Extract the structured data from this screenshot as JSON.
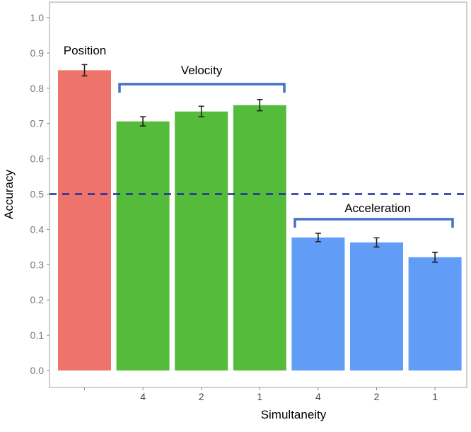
{
  "chart_data": {
    "type": "bar",
    "title": "",
    "xlabel": "Simultaneity",
    "ylabel": "Accuracy",
    "ylim": [
      0,
      1.0
    ],
    "yticks": [
      "0.0",
      "0.1",
      "0.2",
      "0.3",
      "0.4",
      "0.5",
      "0.6",
      "0.7",
      "0.8",
      "0.9",
      "1.0"
    ],
    "categories": [
      "",
      "4",
      "2",
      "1",
      "4",
      "2",
      "1"
    ],
    "groups": [
      "Position",
      "Velocity",
      "Velocity",
      "Velocity",
      "Acceleration",
      "Acceleration",
      "Acceleration"
    ],
    "values": [
      0.851,
      0.706,
      0.734,
      0.752,
      0.377,
      0.363,
      0.321
    ],
    "errors": [
      0.016,
      0.013,
      0.015,
      0.016,
      0.012,
      0.013,
      0.014
    ],
    "colors": {
      "Position": "#ee736b",
      "Velocity": "#55bb3b",
      "Acceleration": "#619cf6"
    },
    "reference_line": {
      "value": 0.5,
      "color": "#1f2e9a",
      "style": "dashed"
    },
    "annotations": {
      "position": "Position",
      "velocity": "Velocity",
      "acceleration": "Acceleration"
    },
    "bracket_color": "#4472c4",
    "grid": false
  }
}
